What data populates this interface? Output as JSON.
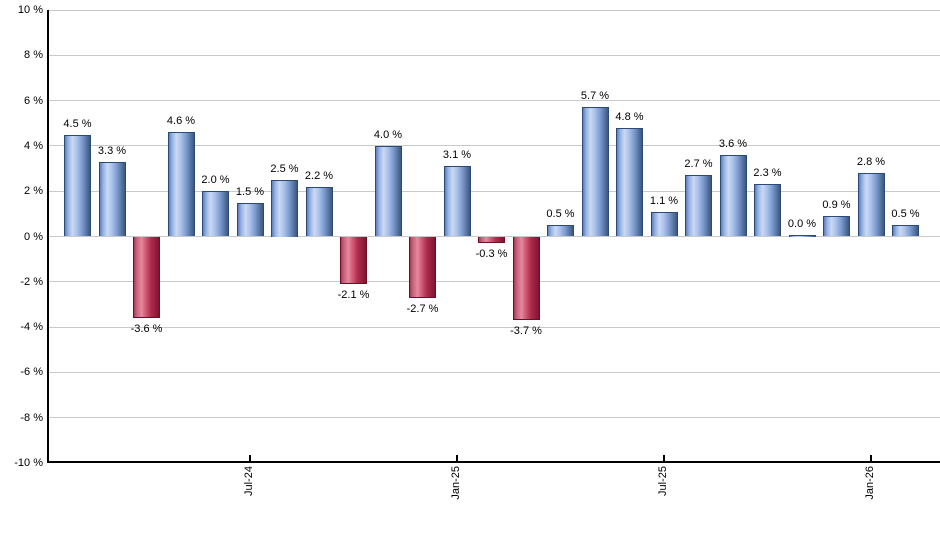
{
  "chart_data": {
    "type": "bar",
    "title": "",
    "values": [
      4.5,
      3.3,
      -3.6,
      4.6,
      2.0,
      1.5,
      2.5,
      2.2,
      -2.1,
      4.0,
      -2.7,
      3.1,
      -0.3,
      -3.7,
      0.5,
      5.7,
      4.8,
      1.1,
      2.7,
      3.6,
      2.3,
      0.0,
      0.9,
      2.8,
      0.5
    ],
    "bar_labels": [
      "4.5 %",
      "3.3 %",
      "-3.6 %",
      "4.6 %",
      "2.0 %",
      "1.5 %",
      "2.5 %",
      "2.2 %",
      "-2.1 %",
      "4.0 %",
      "-2.7 %",
      "3.1 %",
      "-0.3 %",
      "-3.7 %",
      "0.5 %",
      "5.7 %",
      "4.8 %",
      "1.1 %",
      "2.7 %",
      "3.6 %",
      "2.3 %",
      "0.0 %",
      "0.9 %",
      "2.8 %",
      "0.5 %"
    ],
    "x_ticks": [
      {
        "label": "Jul-24",
        "bar_index": 5
      },
      {
        "label": "Jan-25",
        "bar_index": 11
      },
      {
        "label": "Jul-25",
        "bar_index": 17
      },
      {
        "label": "Jan-26",
        "bar_index": 23
      }
    ],
    "y_tick_labels": [
      "10 %",
      "8 %",
      "6 %",
      "4 %",
      "2 %",
      "0 %",
      "-2 %",
      "-4 %",
      "-6 %",
      "-8 %",
      "-10 %"
    ],
    "y_tick_values": [
      10,
      8,
      6,
      4,
      2,
      0,
      -2,
      -4,
      -6,
      -8,
      -10
    ],
    "ylim": [
      -10,
      10
    ],
    "grid": true,
    "legend": "none",
    "colors": {
      "positive_bar_light": "#cbd9f4",
      "positive_bar_dark": "#3b577f",
      "positive_bar_border": "#2c4a78",
      "negative_bar_light": "#e5899f",
      "negative_bar_dark": "#7d1430",
      "negative_bar_border": "#6e0e26",
      "gridline": "#c9c9c9",
      "axis": "#000000",
      "text": "#000000"
    }
  }
}
